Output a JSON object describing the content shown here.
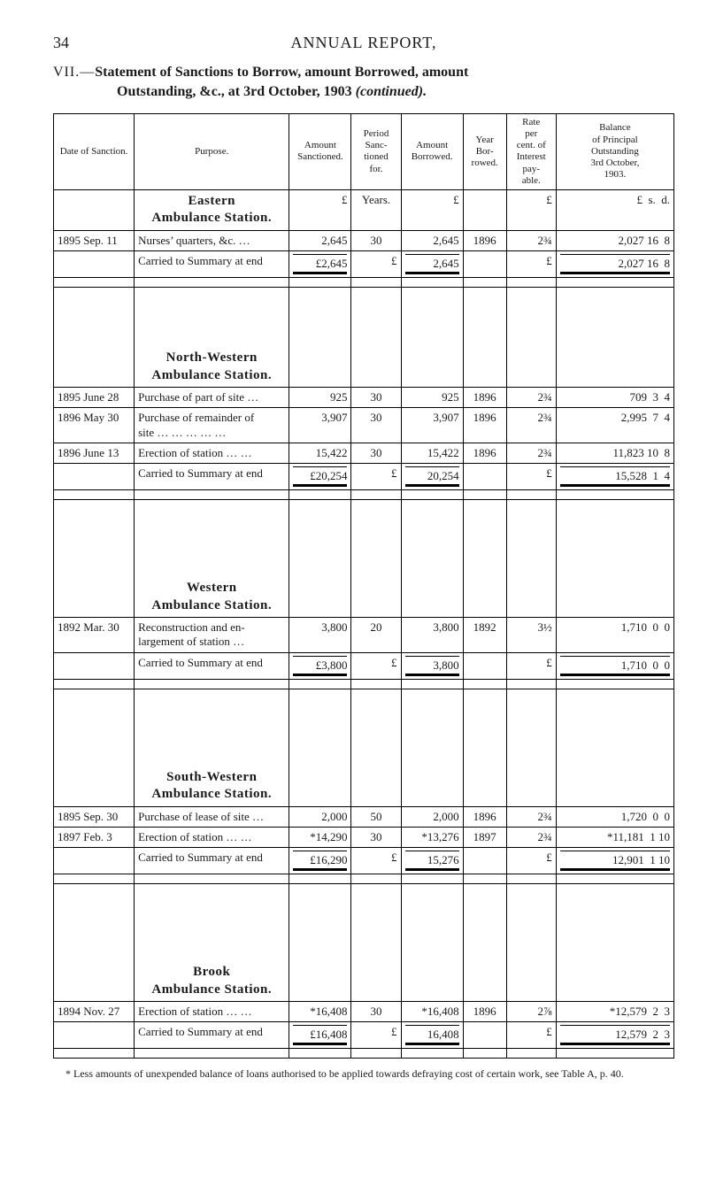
{
  "page_number": "34",
  "header": "ANNUAL REPORT,",
  "section_num": "VII.—",
  "section_title_bold1": "Statement of Sanctions to Borrow, amount Borrowed, amount",
  "section_title_bold2": "Outstanding, &c., at 3rd October, 1903",
  "section_title_cont": "(continued).",
  "columns": {
    "date": "Date of Sanction.",
    "purpose": "Purpose.",
    "amt_sanc": "Amount\nSanctioned.",
    "period": "Period\nSanc-\ntioned\nfor.",
    "amt_borr": "Amount\nBorrowed.",
    "year": "Year\nBor-\nrowed.",
    "rate": "Rate\nper\ncent. of\nInterest\npay-\nable.",
    "balance": "Balance\nof Principal\nOutstanding\n3rd October,\n1903."
  },
  "units": {
    "pound": "£",
    "years": "Years.",
    "lsd": "£  s.  d."
  },
  "stations": [
    {
      "name": "Eastern\nAmbulance Station.",
      "pad_class": "",
      "rows": [
        {
          "date": "1895 Sep. 11",
          "purpose": "Nurses’ quarters, &c.    …",
          "amt_sanc": "2,645",
          "period": "30",
          "amt_borr": "2,645",
          "year": "1896",
          "rate": "2¾",
          "balance": "2,027 16  8"
        }
      ],
      "carry": {
        "purpose": "Carried to Summary at end",
        "amt_sanc": "£2,645",
        "period": "£",
        "amt_borr": "2,645",
        "rate": "£",
        "balance": "2,027 16  8"
      }
    },
    {
      "name": "North-Western\nAmbulance Station.",
      "pad_class": "pad-top-lg",
      "rows": [
        {
          "date": "1895 June 28",
          "purpose": "Purchase of part of site …",
          "amt_sanc": "925",
          "period": "30",
          "amt_borr": "925",
          "year": "1896",
          "rate": "2¾",
          "balance": "709  3  4"
        },
        {
          "date": "1896 May 30",
          "purpose": "Purchase of remainder of\n  site  …  …  …  …  …",
          "amt_sanc": "3,907",
          "period": "30",
          "amt_borr": "3,907",
          "year": "1896",
          "rate": "2¾",
          "balance": "2,995  7  4"
        },
        {
          "date": "1896 June 13",
          "purpose": "Erection of station  …  …",
          "amt_sanc": "15,422",
          "period": "30",
          "amt_borr": "15,422",
          "year": "1896",
          "rate": "2¾",
          "balance": "11,823 10  8"
        }
      ],
      "carry": {
        "purpose": "Carried to Summary at end",
        "amt_sanc": "£20,254",
        "period": "£",
        "amt_borr": "20,254",
        "rate": "£",
        "balance": "15,528  1  4"
      }
    },
    {
      "name": "Western\nAmbulance Station.",
      "pad_class": "pad-top-xl",
      "rows": [
        {
          "date": "1892 Mar. 30",
          "purpose": "Reconstruction and en-\n  largement of station   …",
          "amt_sanc": "3,800",
          "period": "20",
          "amt_borr": "3,800",
          "year": "1892",
          "rate": "3½",
          "balance": "1,710  0  0"
        }
      ],
      "carry": {
        "purpose": "Carried to Summary at end",
        "amt_sanc": "£3,800",
        "period": "£",
        "amt_borr": "3,800",
        "rate": "£",
        "balance": "1,710  0  0"
      }
    },
    {
      "name": "South-Western\nAmbulance Station.",
      "pad_class": "pad-top-xl",
      "rows": [
        {
          "date": "1895 Sep. 30",
          "purpose": "Purchase of lease of site …",
          "amt_sanc": "2,000",
          "period": "50",
          "amt_borr": "2,000",
          "year": "1896",
          "rate": "2¾",
          "balance": "1,720  0  0"
        },
        {
          "date": "1897 Feb.  3",
          "purpose": "Erection of station  …  …",
          "amt_sanc": "*14,290",
          "period": "30",
          "amt_borr": "*13,276",
          "year": "1897",
          "rate": "2¾",
          "balance": "*11,181  1 10"
        }
      ],
      "carry": {
        "purpose": "Carried to Summary at end",
        "amt_sanc": "£16,290",
        "period": "£",
        "amt_borr": "15,276",
        "rate": "£",
        "balance": "12,901  1 10"
      }
    },
    {
      "name": "Brook\nAmbulance Station.",
      "pad_class": "pad-top-xl",
      "rows": [
        {
          "date": "1894 Nov. 27",
          "purpose": "Erection of station  …  …",
          "amt_sanc": "*16,408",
          "period": "30",
          "amt_borr": "*16,408",
          "year": "1896",
          "rate": "2⅞",
          "balance": "*12,579  2  3"
        }
      ],
      "carry": {
        "purpose": "Carried to Summary at end",
        "amt_sanc": "£16,408",
        "period": "£",
        "amt_borr": "16,408",
        "rate": "£",
        "balance": "12,579  2  3"
      }
    }
  ],
  "footnote": "* Less amounts of unexpended balance of loans authorised to be applied towards defraying cost of certain work, see Table A, p. 40."
}
